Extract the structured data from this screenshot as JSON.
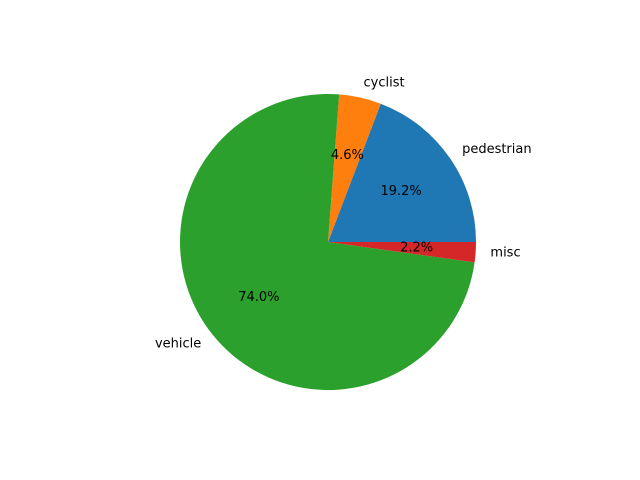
{
  "chart_data": {
    "type": "pie",
    "title": "",
    "start_angle": 0,
    "direction": "counterclockwise",
    "slices": [
      {
        "label": "pedestrian",
        "value": 19.2,
        "pct_label": "19.2%",
        "color": "#1f77b4"
      },
      {
        "label": "cyclist",
        "value": 4.6,
        "pct_label": "4.6%",
        "color": "#ff7f0e"
      },
      {
        "label": "vehicle",
        "value": 74.0,
        "pct_label": "74.0%",
        "color": "#2ca02c"
      },
      {
        "label": "misc",
        "value": 2.2,
        "pct_label": "2.2%",
        "color": "#d62728"
      }
    ]
  }
}
